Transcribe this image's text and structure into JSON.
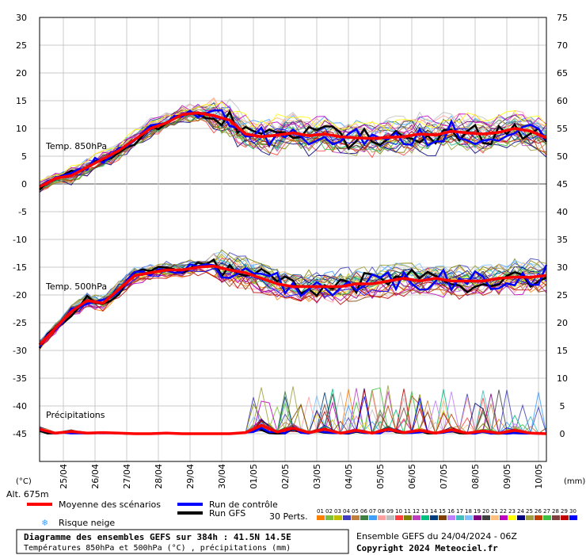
{
  "chart_data": {
    "type": "line",
    "title": "Diagramme des ensembles GEFS sur 384h : 41.5N 14.5E",
    "subtitle": "Températures 850hPa et 500hPa (°C) , précipitations (mm)",
    "ensemble_label": "Ensemble GEFS du 24/04/2024 - 06Z",
    "copyright": "Copyright 2024 Meteociel.fr",
    "altitude": "Alt. 675m",
    "y_left_unit": "(°C)",
    "y_right_unit": "(mm)",
    "y_left_range": [
      -50,
      30
    ],
    "y_left_ticks": [
      30,
      25,
      20,
      15,
      10,
      5,
      0,
      -5,
      -10,
      -15,
      -20,
      -25,
      -30,
      -35,
      -40,
      -45
    ],
    "y_right_ticks": [
      75,
      70,
      65,
      60,
      55,
      50,
      45,
      40,
      35,
      30,
      25,
      20,
      15,
      10,
      5,
      0
    ],
    "x_ticks": [
      "25/04",
      "26/04",
      "27/04",
      "28/04",
      "29/04",
      "30/04",
      "01/05",
      "02/05",
      "03/05",
      "04/05",
      "05/05",
      "06/05",
      "07/05",
      "08/05",
      "09/05",
      "10/05"
    ],
    "x_range_hours": [
      0,
      384
    ],
    "panel_labels": {
      "t850": "Temp. 850hPa",
      "t500": "Temp. 500hPa",
      "precip": "Précipitations"
    },
    "legend": {
      "mean": "Moyenne des scénarios",
      "control": "Run de contrôle",
      "gfs": "Run GFS",
      "snow": "Risque neige",
      "perts": "30 Perts."
    },
    "member_ids": [
      "01",
      "02",
      "03",
      "04",
      "05",
      "06",
      "07",
      "08",
      "09",
      "10",
      "11",
      "12",
      "13",
      "14",
      "15",
      "16",
      "17",
      "18",
      "19",
      "20",
      "21",
      "22",
      "23",
      "24",
      "25",
      "26",
      "27",
      "28",
      "29",
      "30"
    ],
    "member_colors": [
      "#ff7f00",
      "#7fbf3f",
      "#bfbf00",
      "#3f3fbf",
      "#bf7f3f",
      "#3f7f3f",
      "#3f9fff",
      "#ff9f9f",
      "#bfbfbf",
      "#ff3f3f",
      "#7f7f00",
      "#bf3fbf",
      "#00bf7f",
      "#003f7f",
      "#7f3f00",
      "#bf7fff",
      "#3fbfbf",
      "#7fbfff",
      "#7f007f",
      "#3f3f3f",
      "#ffbf7f",
      "#bf00bf",
      "#ffff00",
      "#00007f",
      "#9f9f3f",
      "#bf3f00",
      "#3fbf3f",
      "#7f3f3f",
      "#bf0000",
      "#0000ff"
    ],
    "colors": {
      "mean": "#ff0000",
      "control": "#0000ff",
      "gfs": "#000000",
      "grid": "#c8c8c8",
      "zero_line": "#888888"
    },
    "series_t850_mean": {
      "hours": [
        0,
        12,
        24,
        36,
        48,
        60,
        72,
        84,
        96,
        108,
        120,
        132,
        144,
        156,
        168,
        180,
        192,
        204,
        216,
        228,
        240,
        252,
        264,
        276,
        288,
        300,
        312,
        324,
        336,
        348,
        360,
        372,
        384
      ],
      "values": [
        -0.5,
        1,
        1.5,
        3,
        4.5,
        6,
        8,
        10,
        11,
        12.5,
        12.8,
        12.3,
        11.5,
        9,
        8.5,
        8.8,
        9.2,
        8.7,
        9,
        8.5,
        8.3,
        8.2,
        8.4,
        8.5,
        9,
        8.8,
        9.5,
        9.2,
        9,
        9.3,
        10,
        9.5,
        8.3
      ]
    },
    "series_t500_mean": {
      "hours": [
        0,
        12,
        24,
        36,
        48,
        60,
        72,
        84,
        96,
        108,
        120,
        132,
        144,
        156,
        168,
        180,
        192,
        204,
        216,
        228,
        240,
        252,
        264,
        276,
        288,
        300,
        312,
        324,
        336,
        348,
        360,
        372,
        384
      ],
      "values": [
        -29,
        -26,
        -23,
        -21,
        -21.5,
        -19,
        -16.5,
        -16,
        -15.5,
        -15.5,
        -15,
        -14.8,
        -15.5,
        -16,
        -17,
        -18,
        -18.5,
        -18.5,
        -18.5,
        -18.5,
        -18,
        -18,
        -17.5,
        -17,
        -17.5,
        -17,
        -17.5,
        -17.5,
        -17.5,
        -17,
        -16.8,
        -16.8,
        -16.5
      ]
    },
    "series_precip_mean_mm": {
      "hours": [
        0,
        12,
        24,
        36,
        48,
        60,
        72,
        84,
        96,
        108,
        120,
        132,
        144,
        156,
        168,
        180,
        192,
        204,
        216,
        228,
        240,
        252,
        264,
        276,
        288,
        300,
        312,
        324,
        336,
        348,
        360,
        372,
        384
      ],
      "values": [
        0.8,
        0.1,
        0.4,
        0.1,
        0.2,
        0.1,
        0,
        0,
        0.1,
        0,
        0,
        0,
        0,
        0.2,
        1.5,
        0.3,
        1,
        0.2,
        0.8,
        0.1,
        0.6,
        0.1,
        0.8,
        0.2,
        0.6,
        0.1,
        0.7,
        0.1,
        0.5,
        0.1,
        0.6,
        0.1,
        0
      ]
    }
  }
}
